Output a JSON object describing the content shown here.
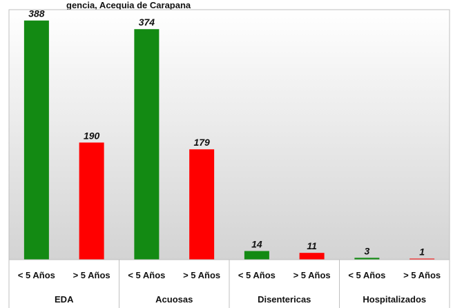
{
  "chart_data": {
    "type": "bar",
    "title": "gencia, Acequia de Carapana",
    "groups": [
      "EDA",
      "Acuosas",
      "Disentericas",
      "Hospitalizados"
    ],
    "categories": [
      "< 5 Años",
      "> 5 Años",
      "< 5 Años",
      "> 5 Años",
      "< 5 Años",
      "> 5 Años",
      "< 5 Años",
      "> 5 Años"
    ],
    "values": [
      388,
      190,
      374,
      179,
      14,
      11,
      3,
      1
    ],
    "bar_colors": [
      "#138a13",
      "#ff0000",
      "#138a13",
      "#ff0000",
      "#138a13",
      "#ff0000",
      "#138a13",
      "#ff0000"
    ],
    "ylim": [
      0,
      400
    ],
    "grid": false,
    "legend": "none",
    "background": "gradient light-gray"
  }
}
